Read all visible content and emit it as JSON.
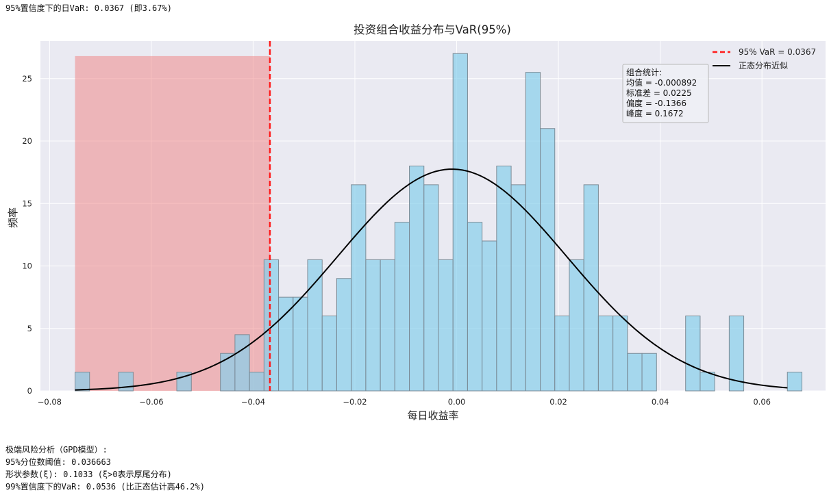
{
  "console": {
    "top_line": "95%置信度下的日VaR: 0.0367 (即3.67%)",
    "bottom_lines": [
      "极端风险分析（GPD模型）:",
      "95%分位数阈值: 0.036663",
      "形状参数(ξ): 0.1033 (ξ>0表示厚尾分布)",
      "99%置信度下的VaR: 0.0536 (比正态估计高46.2%)"
    ]
  },
  "chart_data": {
    "type": "bar",
    "title": "投资组合收益分布与VaR(95%)",
    "xlabel": "每日收益率",
    "ylabel": "频率",
    "xlim": [
      -0.0818,
      0.0725
    ],
    "ylim": [
      0,
      28
    ],
    "x_ticks": [
      -0.08,
      -0.06,
      -0.04,
      -0.02,
      0.0,
      0.02,
      0.04,
      0.06
    ],
    "x_tick_labels": [
      "−0.08",
      "−0.06",
      "−0.04",
      "−0.02",
      "0.00",
      "0.02",
      "0.04",
      "0.06"
    ],
    "y_ticks": [
      0,
      5,
      10,
      15,
      20,
      25
    ],
    "y_tick_labels": [
      "0",
      "5",
      "10",
      "15",
      "20",
      "25"
    ],
    "grid": true,
    "legend_position": "top-right",
    "bin_start": -0.075,
    "bin_width": 0.002857,
    "bin_heights": [
      1.5,
      0,
      0,
      1.5,
      0,
      0,
      0,
      1.5,
      0,
      0,
      3,
      4.5,
      1.5,
      10.5,
      7.5,
      7.5,
      10.5,
      6,
      9,
      16.5,
      10.5,
      10.5,
      13.5,
      18,
      16.5,
      10.5,
      27,
      13.5,
      12,
      18,
      16.5,
      25.5,
      21,
      6,
      10.5,
      16.5,
      6,
      6,
      3,
      3,
      0,
      0,
      6,
      1.5,
      0,
      6,
      0,
      0,
      0,
      1.5
    ],
    "var_line": {
      "x": -0.0367,
      "label": "95% VaR = 0.0367",
      "color": "#ff1a1a"
    },
    "tail_region": {
      "x_from": -0.075,
      "x_to": -0.0367,
      "height": 26.8,
      "color": "#f08080"
    },
    "normal_fit": {
      "label": "正态分布近似",
      "mean": -0.000892,
      "std": 0.0225,
      "scale": 17.75,
      "x_from": -0.075,
      "x_to": 0.065,
      "color": "#000000"
    },
    "bar_color": "#87ceeb",
    "stats_box": {
      "lines": [
        "组合统计:",
        "均值 = -0.000892",
        "标准差 = 0.0225",
        "偏度 = -0.1366",
        "峰度 = 0.1672"
      ]
    }
  },
  "colors": {
    "plot_bg": "#eaeaf2",
    "grid": "#ffffff",
    "bar_edge": "#7a8a95"
  }
}
